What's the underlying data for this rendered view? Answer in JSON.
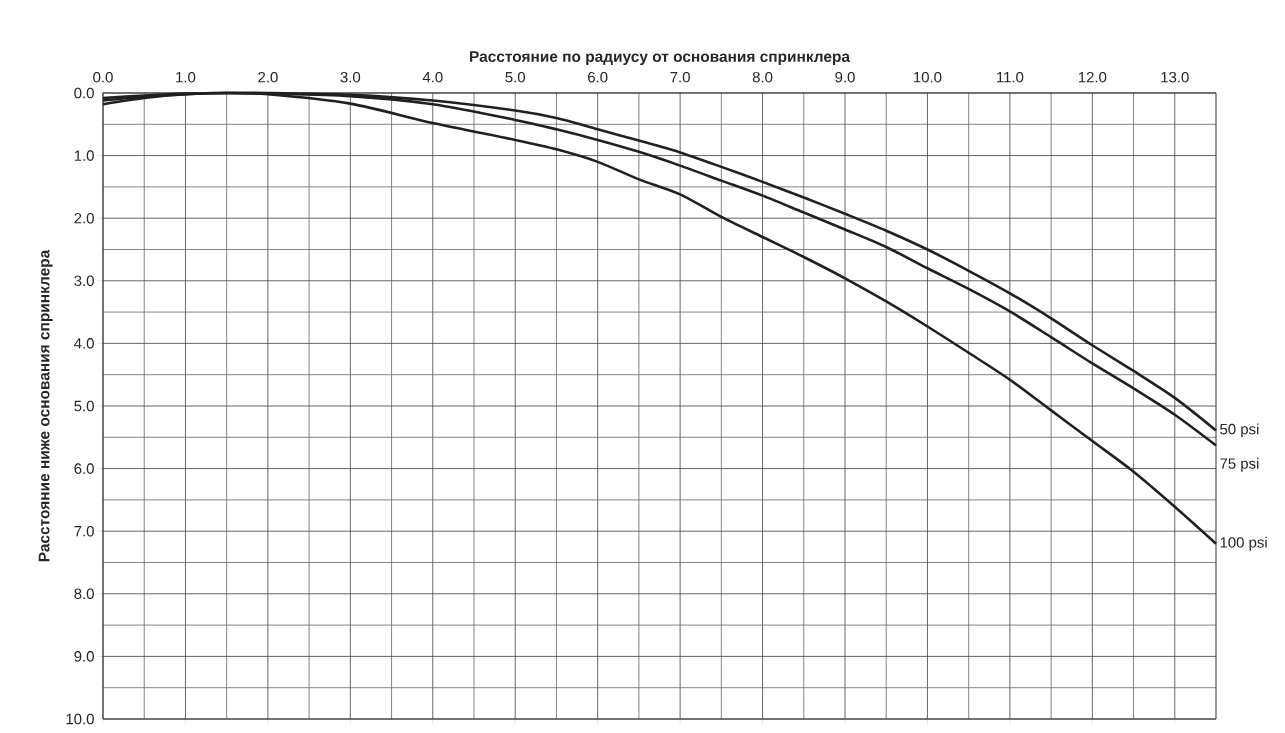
{
  "chart_data": {
    "type": "line",
    "xlabel": "Расстояние по радиусу от основания спринклера",
    "ylabel": "Расстояние ниже основания спринклера",
    "xlim": [
      0,
      13.5
    ],
    "ylim": [
      10,
      0
    ],
    "xticks": [
      {
        "value": 0,
        "label": "0.0"
      },
      {
        "value": 1,
        "label": "1.0"
      },
      {
        "value": 2,
        "label": "2.0"
      },
      {
        "value": 3,
        "label": "3.0"
      },
      {
        "value": 4,
        "label": "4.0"
      },
      {
        "value": 5,
        "label": "5.0"
      },
      {
        "value": 6,
        "label": "6.0"
      },
      {
        "value": 7,
        "label": "7.0"
      },
      {
        "value": 8,
        "label": "8.0"
      },
      {
        "value": 9,
        "label": "9.0"
      },
      {
        "value": 10,
        "label": "10.0"
      },
      {
        "value": 11,
        "label": "11.0"
      },
      {
        "value": 12,
        "label": "12.0"
      },
      {
        "value": 13,
        "label": "13.0"
      }
    ],
    "yticks": [
      {
        "value": 0,
        "label": "0.0"
      },
      {
        "value": 1,
        "label": "1.0"
      },
      {
        "value": 2,
        "label": "2.0"
      },
      {
        "value": 3,
        "label": "3.0"
      },
      {
        "value": 4,
        "label": "4.0"
      },
      {
        "value": 5,
        "label": "5.0"
      },
      {
        "value": 6,
        "label": "6.0"
      },
      {
        "value": 7,
        "label": "7.0"
      },
      {
        "value": 8,
        "label": "8.0"
      },
      {
        "value": 9,
        "label": "9.0"
      },
      {
        "value": 10,
        "label": "10.0"
      }
    ],
    "grid": true,
    "marker": "none",
    "line_style": "solid",
    "x": [
      0,
      0.5,
      1.0,
      1.5,
      2.0,
      3.0,
      4.0,
      5.0,
      5.5,
      6.0,
      6.5,
      7.0,
      7.5,
      8.0,
      8.5,
      9.0,
      9.5,
      10.0,
      10.5,
      11.0,
      11.5,
      12.0,
      12.5,
      13.0,
      13.5
    ],
    "series": [
      {
        "name": "50 psi",
        "color": "#231f20",
        "values": [
          0.08,
          0.04,
          0.01,
          0,
          0,
          0.03,
          0.12,
          0.28,
          0.4,
          0.58,
          0.76,
          0.95,
          1.18,
          1.42,
          1.67,
          1.93,
          2.2,
          2.5,
          2.84,
          3.2,
          3.6,
          4.03,
          4.44,
          4.87,
          5.39
        ]
      },
      {
        "name": "75 psi",
        "color": "#231f20",
        "values": [
          0.12,
          0.06,
          0.02,
          0,
          0.01,
          0.05,
          0.18,
          0.43,
          0.58,
          0.75,
          0.94,
          1.16,
          1.4,
          1.64,
          1.91,
          2.18,
          2.46,
          2.8,
          3.13,
          3.49,
          3.9,
          4.32,
          4.72,
          5.14,
          5.63
        ]
      },
      {
        "name": "100 psi",
        "color": "#231f20",
        "values": [
          0.18,
          0.08,
          0.02,
          0,
          0.02,
          0.17,
          0.48,
          0.75,
          0.9,
          1.1,
          1.38,
          1.62,
          1.98,
          2.3,
          2.62,
          2.96,
          3.33,
          3.73,
          4.15,
          4.58,
          5.07,
          5.56,
          6.05,
          6.61,
          7.2
        ]
      }
    ]
  }
}
